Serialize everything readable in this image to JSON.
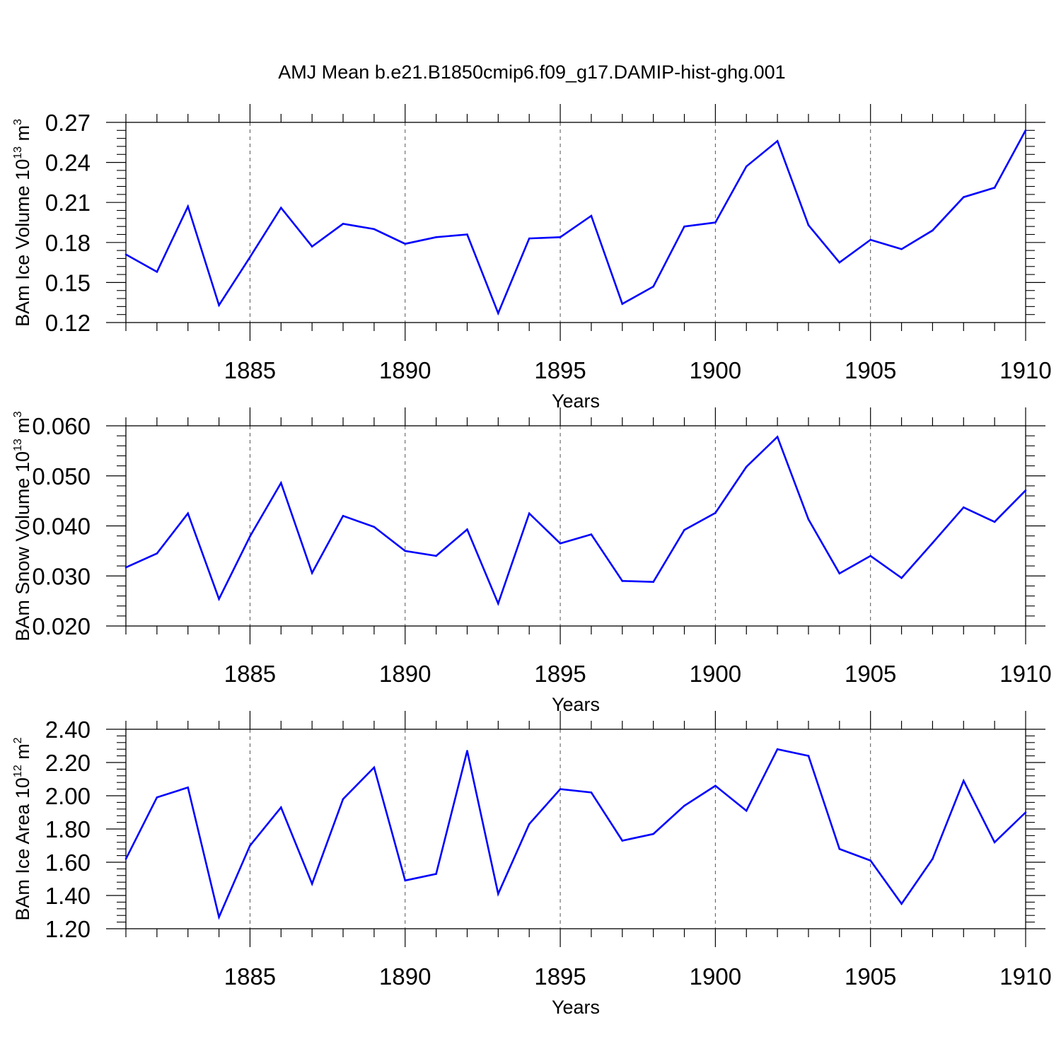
{
  "chart_data": {
    "title": "AMJ Mean b.e21.B1850cmip6.f09_g17.DAMIP-hist-ghg.001",
    "panels": [
      {
        "type": "line",
        "ylabel": {
          "prefix": "BAm Ice Volume 10",
          "exp": "13",
          "unit": " m",
          "unit_exp": "3"
        },
        "xlabel": "Years",
        "xlim": [
          1881,
          1910
        ],
        "ylim": [
          0.12,
          0.27
        ],
        "yticks": [
          0.12,
          0.15,
          0.18,
          0.21,
          0.24,
          0.27
        ],
        "ytick_labels": [
          "0.12",
          "0.15",
          "0.18",
          "0.21",
          "0.24",
          "0.27"
        ],
        "xticks": [
          1885,
          1890,
          1895,
          1900,
          1905,
          1910
        ],
        "xtick_labels": [
          "1885",
          "1890",
          "1895",
          "1900",
          "1905",
          "1910"
        ],
        "line_color": "#0000ff",
        "series": [
          {
            "name": "ice_volume",
            "x": [
              1881,
              1882,
              1883,
              1884,
              1885,
              1886,
              1887,
              1888,
              1889,
              1890,
              1891,
              1892,
              1893,
              1894,
              1895,
              1896,
              1897,
              1898,
              1899,
              1900,
              1901,
              1902,
              1903,
              1904,
              1905,
              1906,
              1907,
              1908,
              1909,
              1910
            ],
            "values": [
              0.171,
              0.158,
              0.207,
              0.133,
              0.169,
              0.206,
              0.177,
              0.194,
              0.19,
              0.179,
              0.184,
              0.186,
              0.127,
              0.183,
              0.184,
              0.2,
              0.134,
              0.147,
              0.192,
              0.195,
              0.237,
              0.256,
              0.193,
              0.165,
              0.182,
              0.175,
              0.189,
              0.214,
              0.221,
              0.264
            ]
          }
        ]
      },
      {
        "type": "line",
        "ylabel": {
          "prefix": "BAm Snow Volume 10",
          "exp": "13",
          "unit": " m",
          "unit_exp": "3"
        },
        "xlabel": "Years",
        "xlim": [
          1881,
          1910
        ],
        "ylim": [
          0.02,
          0.06
        ],
        "yticks": [
          0.02,
          0.03,
          0.04,
          0.05,
          0.06
        ],
        "ytick_labels": [
          "0.020",
          "0.030",
          "0.040",
          "0.050",
          "0.060"
        ],
        "xticks": [
          1885,
          1890,
          1895,
          1900,
          1905,
          1910
        ],
        "xtick_labels": [
          "1885",
          "1890",
          "1895",
          "1900",
          "1905",
          "1910"
        ],
        "line_color": "#0000ff",
        "series": [
          {
            "name": "snow_volume",
            "x": [
              1881,
              1882,
              1883,
              1884,
              1885,
              1886,
              1887,
              1888,
              1889,
              1890,
              1891,
              1892,
              1893,
              1894,
              1895,
              1896,
              1897,
              1898,
              1899,
              1900,
              1901,
              1902,
              1903,
              1904,
              1905,
              1906,
              1907,
              1908,
              1909,
              1910
            ],
            "values": [
              0.0317,
              0.0345,
              0.0425,
              0.0254,
              0.0379,
              0.0486,
              0.0306,
              0.042,
              0.0398,
              0.035,
              0.034,
              0.0393,
              0.0245,
              0.0425,
              0.0365,
              0.0383,
              0.029,
              0.0288,
              0.0392,
              0.0426,
              0.0518,
              0.0578,
              0.0413,
              0.0305,
              0.034,
              0.0296,
              0.0366,
              0.0437,
              0.0408,
              0.0471
            ]
          }
        ]
      },
      {
        "type": "line",
        "ylabel": {
          "prefix": "BAm Ice Area 10",
          "exp": "12",
          "unit": " m",
          "unit_exp": "2"
        },
        "xlabel": "Years",
        "xlim": [
          1881,
          1910
        ],
        "ylim": [
          1.2,
          2.4
        ],
        "yticks": [
          1.2,
          1.4,
          1.6,
          1.8,
          2.0,
          2.2,
          2.4
        ],
        "ytick_labels": [
          "1.20",
          "1.40",
          "1.60",
          "1.80",
          "2.00",
          "2.20",
          "2.40"
        ],
        "xticks": [
          1885,
          1890,
          1895,
          1900,
          1905,
          1910
        ],
        "xtick_labels": [
          "1885",
          "1890",
          "1895",
          "1900",
          "1905",
          "1910"
        ],
        "line_color": "#0000ff",
        "series": [
          {
            "name": "ice_area",
            "x": [
              1881,
              1882,
              1883,
              1884,
              1885,
              1886,
              1887,
              1888,
              1889,
              1890,
              1891,
              1892,
              1893,
              1894,
              1895,
              1896,
              1897,
              1898,
              1899,
              1900,
              1901,
              1902,
              1903,
              1904,
              1905,
              1906,
              1907,
              1908,
              1909,
              1910
            ],
            "values": [
              1.62,
              1.99,
              2.05,
              1.27,
              1.7,
              1.93,
              1.47,
              1.98,
              2.17,
              1.49,
              1.53,
              2.27,
              1.41,
              1.83,
              2.04,
              2.02,
              1.73,
              1.77,
              1.94,
              2.06,
              1.91,
              2.28,
              2.24,
              1.68,
              1.61,
              1.35,
              1.62,
              2.09,
              1.72,
              1.9
            ]
          }
        ]
      }
    ]
  }
}
